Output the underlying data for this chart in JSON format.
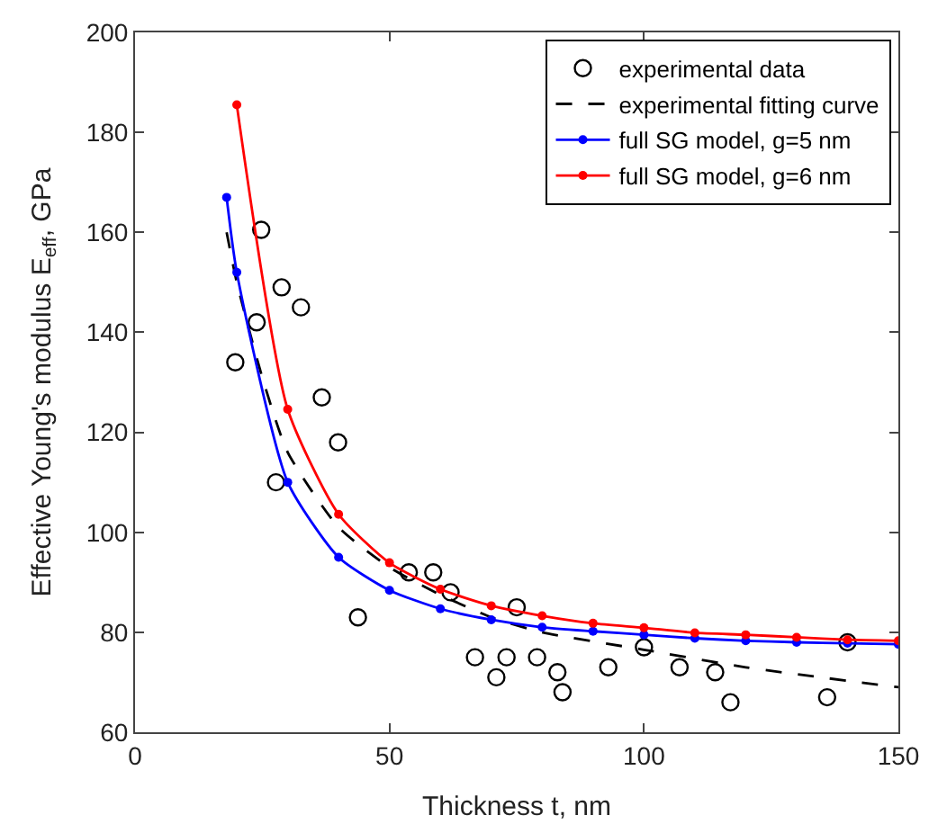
{
  "chart_data": {
    "type": "scatter",
    "xlabel": "Thickness t, nm",
    "ylabel": "Effective Young's modulus E$_{eff}$, GPa",
    "xlim": [
      0,
      150
    ],
    "xticks": [
      0,
      50,
      100,
      150
    ],
    "ylim": [
      60,
      200
    ],
    "yticks": [
      60,
      80,
      100,
      120,
      140,
      160,
      180,
      200
    ],
    "grid": false,
    "legend": "top right",
    "series": [
      {
        "name": "experimental data",
        "marker": "circle",
        "color": "#000000",
        "x": [
          19.7,
          23.9,
          24.8,
          27.7,
          28.8,
          32.6,
          36.7,
          39.9,
          43.8,
          53.8,
          58.6,
          62,
          66.8,
          71,
          73,
          75,
          79,
          83,
          84,
          93,
          100,
          107,
          114,
          117,
          136,
          140
        ],
        "values": [
          134,
          142,
          160.5,
          110,
          149,
          145,
          127,
          118,
          83,
          92,
          92,
          88,
          75,
          71,
          75,
          85,
          75,
          72,
          68,
          73,
          77,
          73,
          72,
          66,
          67,
          78
        ]
      },
      {
        "name": "experimental fitting curve",
        "type": "line",
        "marker": "none",
        "line_style": "dashed",
        "color": "#000000",
        "x": [
          18,
          20,
          25,
          30,
          40,
          50,
          60,
          70,
          80,
          100,
          120,
          150
        ],
        "values": [
          160,
          150,
          131,
          116,
          101,
          93,
          87.5,
          83,
          80,
          76.5,
          73,
          69
        ]
      },
      {
        "name": "full SG model, g=5 nm",
        "type": "line",
        "marker": "circle",
        "line_style": "solid",
        "color": "#0000ff",
        "x": [
          18,
          20,
          30,
          40,
          50,
          60,
          70,
          80,
          90,
          100,
          110,
          120,
          130,
          140,
          150
        ],
        "values": [
          167,
          152,
          110,
          95,
          88.4,
          84.7,
          82.5,
          81,
          80.2,
          79.5,
          78.8,
          78.3,
          78,
          77.8,
          77.6
        ]
      },
      {
        "name": "full SG model, g=6 nm",
        "type": "line",
        "marker": "circle",
        "line_style": "solid",
        "color": "#ff0000",
        "x": [
          20,
          30,
          40,
          50,
          60,
          70,
          80,
          90,
          100,
          110,
          120,
          130,
          140,
          150
        ],
        "values": [
          185.5,
          124.6,
          103.6,
          93.9,
          88.6,
          85.3,
          83.3,
          81.8,
          80.9,
          79.9,
          79.5,
          79,
          78.5,
          78.3
        ]
      }
    ]
  }
}
